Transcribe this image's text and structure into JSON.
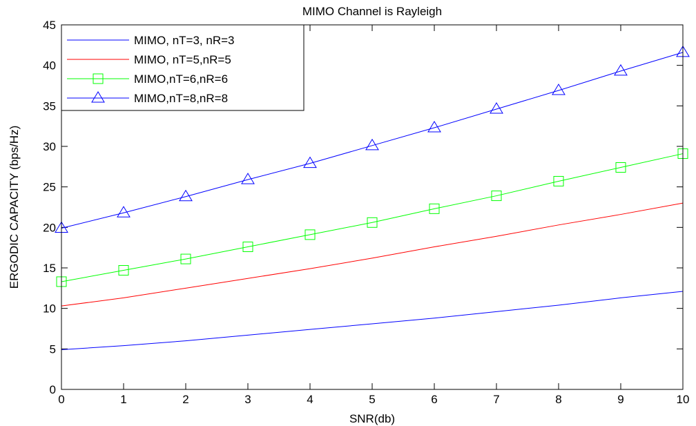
{
  "chart_data": {
    "type": "line",
    "title": "MIMO Channel is Rayleigh",
    "xlabel": "SNR(db)",
    "ylabel": "ERGODIC CAPACITY (bps/Hz)",
    "xlim": [
      0,
      10
    ],
    "ylim": [
      0,
      45
    ],
    "xticks": [
      "0",
      "1",
      "2",
      "3",
      "4",
      "5",
      "6",
      "7",
      "8",
      "9",
      "10"
    ],
    "yticks": [
      "0",
      "5",
      "10",
      "15",
      "20",
      "25",
      "30",
      "35",
      "40",
      "45"
    ],
    "grid": false,
    "legend_position": "top-left",
    "x": [
      0,
      1,
      2,
      3,
      4,
      5,
      6,
      7,
      8,
      9,
      10
    ],
    "series": [
      {
        "name": "MIMO, nT=3, nR=3",
        "color": "#0000ff",
        "marker": "none",
        "values": [
          4.9,
          5.4,
          6.0,
          6.7,
          7.4,
          8.1,
          8.8,
          9.6,
          10.4,
          11.3,
          12.1
        ]
      },
      {
        "name": "MIMO, nT=5,nR=5",
        "color": "#ff0000",
        "marker": "none",
        "values": [
          10.3,
          11.3,
          12.5,
          13.7,
          14.9,
          16.2,
          17.6,
          18.9,
          20.3,
          21.6,
          23.0
        ]
      },
      {
        "name": "MIMO,nT=6,nR=6",
        "color": "#00ff00",
        "marker": "square",
        "values": [
          13.3,
          14.7,
          16.1,
          17.6,
          19.1,
          20.6,
          22.3,
          23.9,
          25.7,
          27.4,
          29.1
        ]
      },
      {
        "name": "MIMO,nT=8,nR=8",
        "color": "#0000ff",
        "marker": "triangle",
        "values": [
          19.9,
          21.8,
          23.8,
          25.9,
          27.9,
          30.1,
          32.3,
          34.6,
          36.9,
          39.3,
          41.6
        ]
      }
    ]
  }
}
